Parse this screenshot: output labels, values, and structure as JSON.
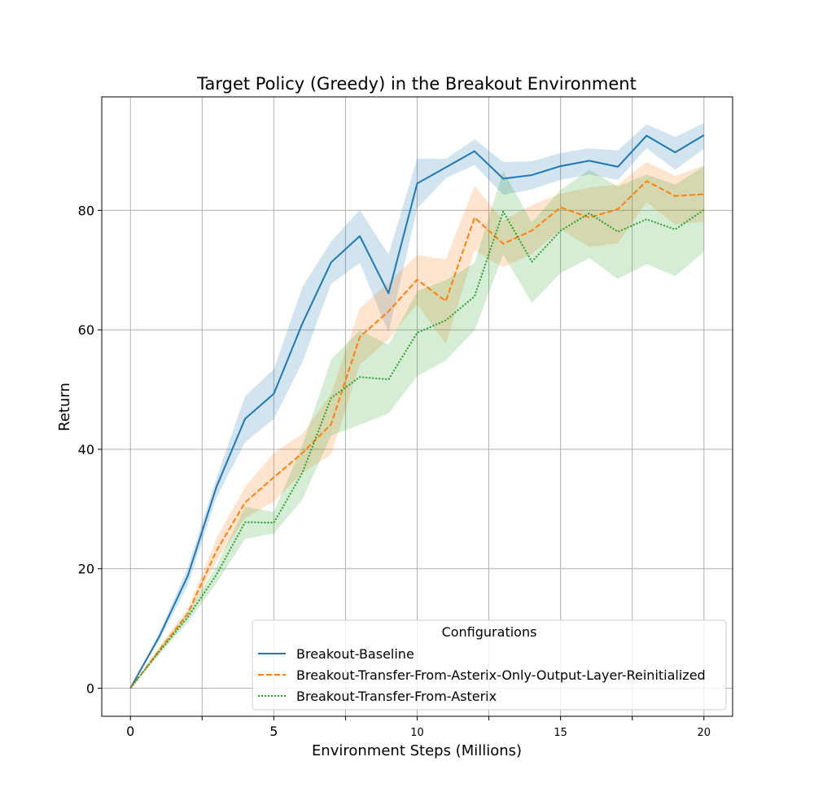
{
  "chart_data": {
    "type": "line",
    "title": "Target Policy (Greedy) in the Breakout Environment",
    "xlabel": "Environment Steps (Millions)",
    "ylabel": "Return",
    "xlim": [
      -1,
      21
    ],
    "ylim": [
      -4.7,
      99
    ],
    "xticks": [
      0,
      2.5,
      5,
      7.5,
      10,
      12.5,
      15,
      17.5,
      20
    ],
    "xtick_labels": [
      "0",
      "",
      "5",
      "",
      "10",
      "",
      "15",
      "",
      "20"
    ],
    "yticks": [
      0,
      20,
      40,
      60,
      80
    ],
    "ytick_labels": [
      "0",
      "20",
      "40",
      "60",
      "80"
    ],
    "grid": true,
    "legend": {
      "title": "Configurations",
      "position": "bottom-right"
    },
    "x": [
      0,
      1,
      2,
      3,
      4,
      5,
      6,
      7,
      8,
      9,
      10,
      11,
      12,
      13,
      14,
      15,
      16,
      17,
      18,
      19,
      20
    ],
    "series": [
      {
        "name": "Breakout-Baseline",
        "color": "#1f77b4",
        "dash": "solid",
        "values": [
          0,
          8.6,
          18.8,
          33.7,
          45.1,
          49.3,
          61.1,
          71.3,
          75.7,
          66.1,
          84.5,
          87.2,
          89.9,
          85.3,
          85.9,
          87.4,
          88.3,
          87.3,
          92.5,
          89.7,
          92.6
        ],
        "lower": [
          0,
          8.0,
          17.2,
          31.9,
          41.2,
          45.1,
          54.6,
          67.7,
          71.2,
          59.5,
          80.3,
          85.4,
          87.6,
          82.6,
          83.5,
          85.1,
          86.0,
          85.1,
          90.4,
          86.8,
          90.3
        ],
        "upper": [
          0,
          9.2,
          20.2,
          35.2,
          48.9,
          53.4,
          67.2,
          74.8,
          80.1,
          72.6,
          88.7,
          88.6,
          91.9,
          88.1,
          88.2,
          89.6,
          90.4,
          90.0,
          94.4,
          92.3,
          94.6
        ]
      },
      {
        "name": "Breakout-Transfer-From-Asterix-Only-Output-Layer-Reinitialized",
        "color": "#ff7f0e",
        "dash": "dashed",
        "values": [
          0,
          6.3,
          12.5,
          23.0,
          31.1,
          35.3,
          39.4,
          44.2,
          58.8,
          63.1,
          68.4,
          64.8,
          78.8,
          74.4,
          76.6,
          80.5,
          78.8,
          80.2,
          84.9,
          82.4,
          82.7
        ],
        "lower": [
          0,
          5.8,
          11.8,
          21.2,
          28.5,
          31.2,
          36.1,
          39.1,
          54.2,
          58.4,
          64.3,
          57.6,
          73.3,
          70.5,
          72.7,
          76.8,
          73.9,
          74.5,
          81.4,
          77.6,
          78.1
        ],
        "upper": [
          0,
          6.9,
          13.3,
          25.1,
          33.7,
          39.4,
          42.6,
          49.3,
          63.6,
          67.9,
          72.5,
          71.8,
          84.1,
          78.3,
          80.9,
          82.8,
          83.8,
          84.3,
          88.1,
          85.8,
          87.5
        ]
      },
      {
        "name": "Breakout-Transfer-From-Asterix",
        "color": "#2ca02c",
        "dash": "dotted",
        "values": [
          0,
          6.1,
          11.9,
          19.0,
          27.8,
          27.7,
          36.1,
          48.6,
          52.1,
          51.7,
          59.5,
          61.6,
          65.6,
          79.8,
          71.4,
          76.6,
          79.5,
          76.4,
          78.5,
          76.8,
          80.1
        ],
        "lower": [
          0,
          5.6,
          11.0,
          17.6,
          25.0,
          25.9,
          31.6,
          42.3,
          44.1,
          46.0,
          52.2,
          54.9,
          59.9,
          72.6,
          64.5,
          69.5,
          72.0,
          68.5,
          71.0,
          69.0,
          73.0
        ],
        "upper": [
          0,
          6.7,
          12.7,
          20.4,
          30.4,
          29.5,
          40.7,
          55.0,
          59.9,
          57.5,
          66.5,
          68.3,
          71.2,
          86.6,
          78.0,
          83.4,
          86.8,
          84.0,
          86.0,
          84.3,
          87.4
        ]
      }
    ]
  }
}
